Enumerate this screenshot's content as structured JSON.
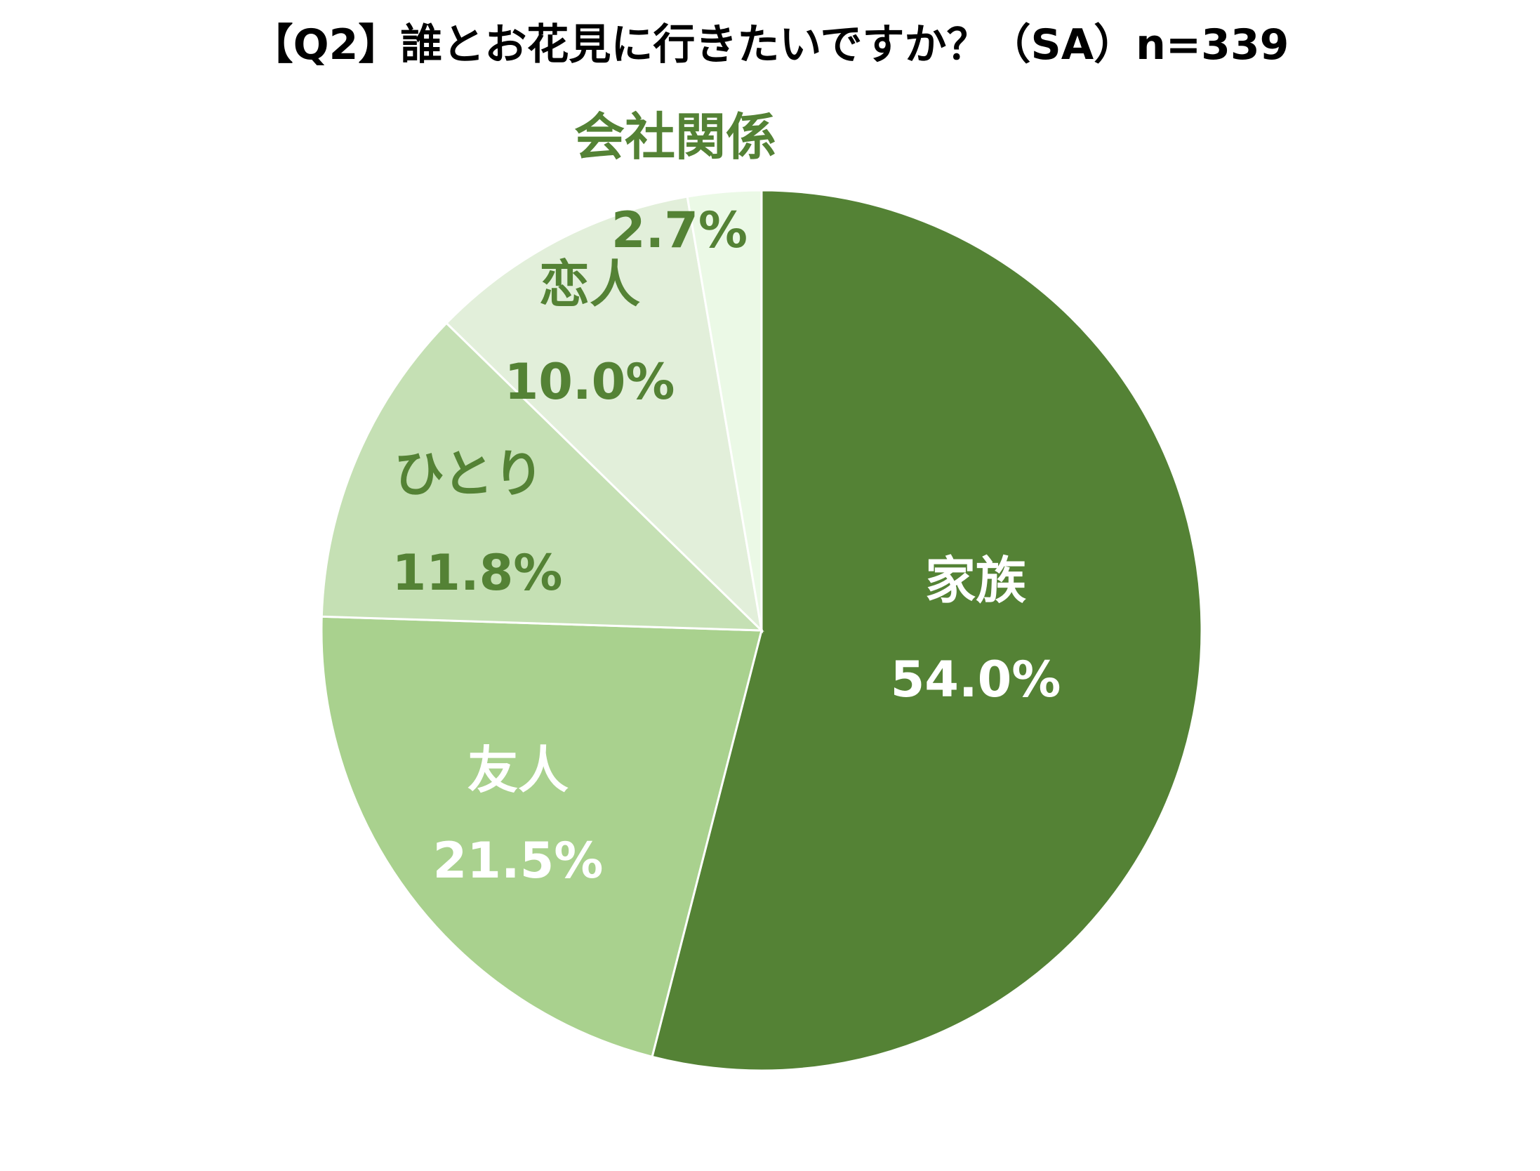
{
  "chart_data": {
    "type": "pie",
    "title": "【Q2】誰とお花見に行きたいですか？（SA）n=339",
    "start_angle_deg": 0,
    "direction": "clockwise",
    "slices": [
      {
        "label": "家族",
        "value": 54.0,
        "display": "54.0%",
        "color": "#548235",
        "text_color": "#ffffff"
      },
      {
        "label": "友人",
        "value": 21.5,
        "display": "21.5%",
        "color": "#a9d18e",
        "text_color": "#ffffff"
      },
      {
        "label": "ひとり",
        "value": 11.8,
        "display": "11.8%",
        "color": "#c5e0b4",
        "text_color": "#548235"
      },
      {
        "label": "恋人",
        "value": 10.0,
        "display": "10.0%",
        "color": "#e2efda",
        "text_color": "#548235"
      },
      {
        "label": "会社関係",
        "value": 2.7,
        "display": "2.7%",
        "color": "#ebf9e6",
        "text_color": "#548235"
      }
    ]
  }
}
